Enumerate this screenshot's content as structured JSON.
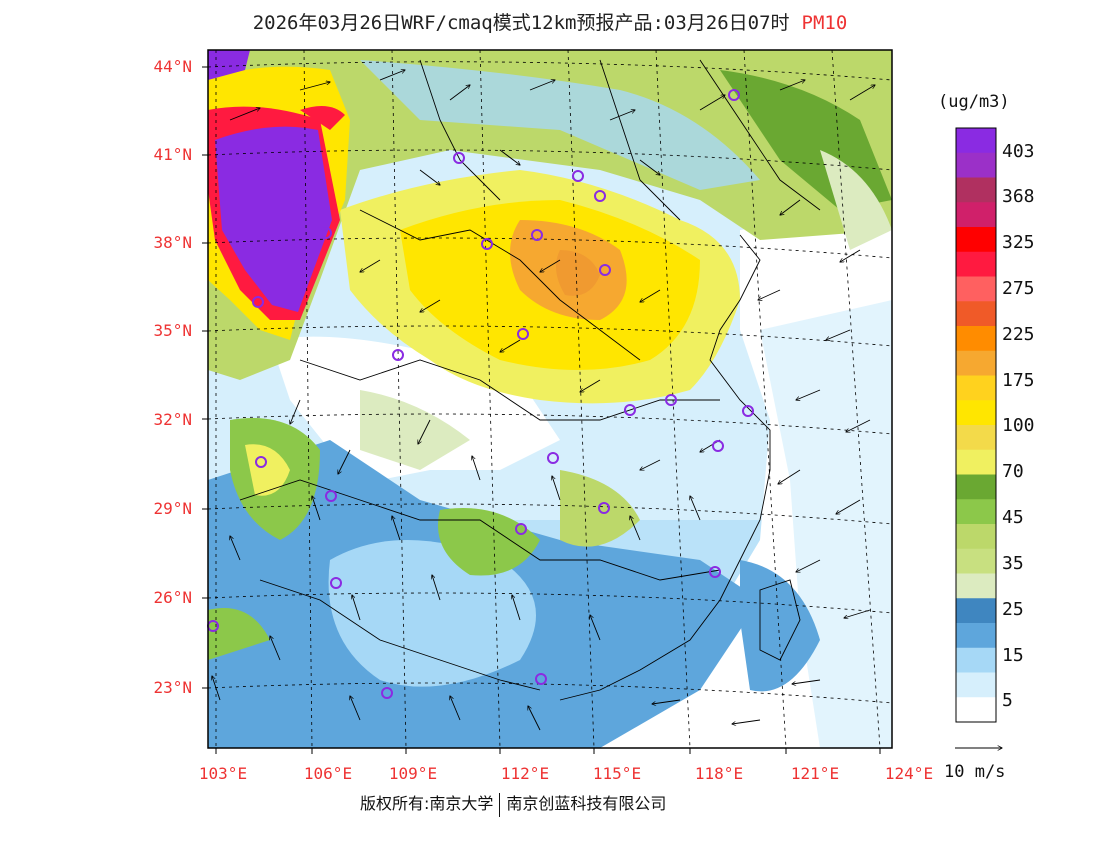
{
  "title": {
    "main": "2026年03月26日WRF/cmaq模式12km预报产品:03月26日07时",
    "pollutant": "PM10"
  },
  "axes": {
    "lat_labels": [
      "44°N",
      "41°N",
      "38°N",
      "35°N",
      "32°N",
      "29°N",
      "26°N",
      "23°N"
    ],
    "lon_labels": [
      "103°E",
      "106°E",
      "109°E",
      "112°E",
      "115°E",
      "118°E",
      "121°E",
      "124°E"
    ]
  },
  "legend": {
    "units": "(ug/m3)",
    "labels": [
      "403",
      "368",
      "325",
      "275",
      "225",
      "175",
      "100",
      "70",
      "45",
      "35",
      "25",
      "15",
      "5"
    ],
    "colors": [
      "#8a2be2",
      "#9b30c8",
      "#b03060",
      "#d0206a",
      "#ff0000",
      "#ff1a40",
      "#ff6060",
      "#f05a28",
      "#ff8c00",
      "#f6a830",
      "#ffd21e",
      "#ffe600",
      "#f3da4a",
      "#f0f060",
      "#6aa832",
      "#8cc84a",
      "#bcd86a",
      "#c8e080",
      "#dcebc0",
      "#3f86c0",
      "#5ea6dc",
      "#a6d8f6",
      "#d6effc",
      "#ffffff"
    ]
  },
  "wind_scale": {
    "label": "10 m/s"
  },
  "footer": {
    "left": "版权所有:南京大学",
    "right": "南京创蓝科技有限公司"
  }
}
